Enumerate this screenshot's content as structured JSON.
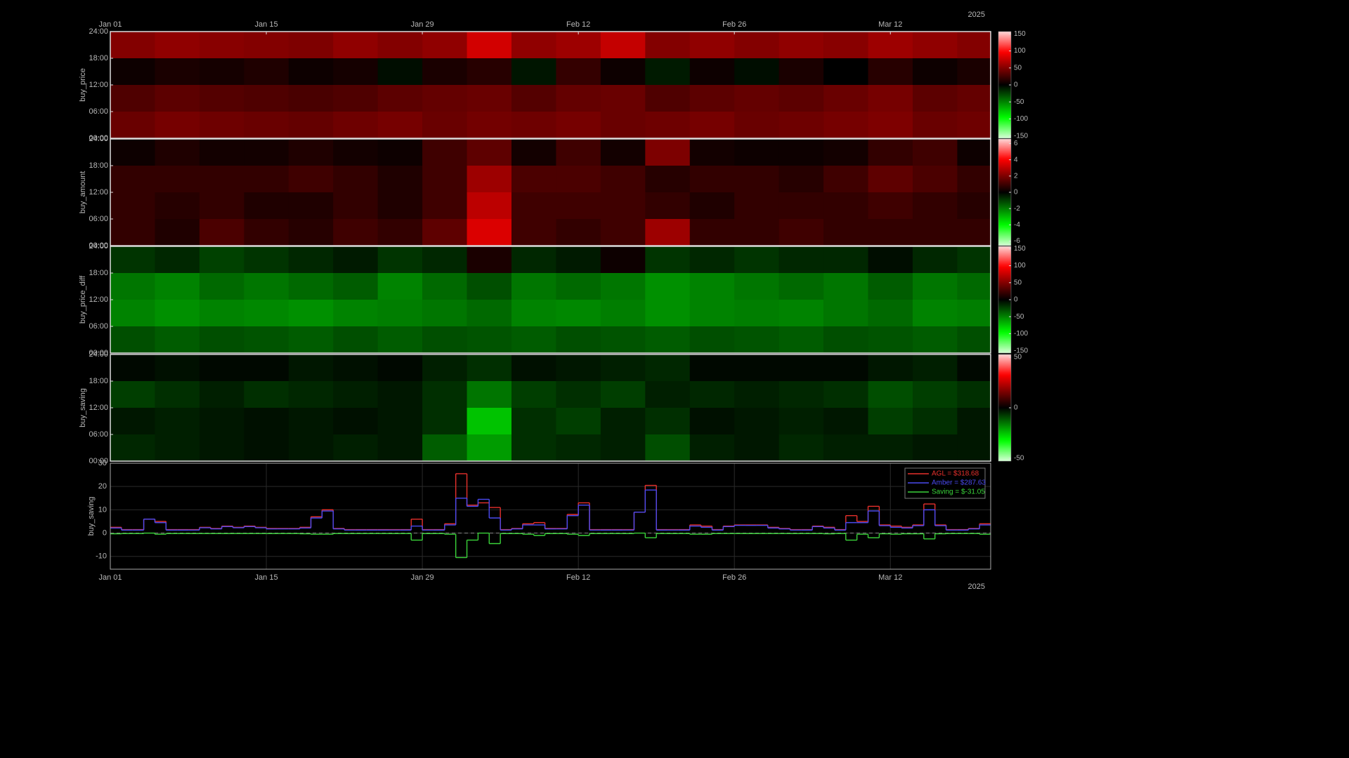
{
  "chart_data": [
    {
      "type": "heatmap",
      "ylabel": "buy_price",
      "xlim": [
        0,
        79
      ],
      "xticks": [
        {
          "value": 0,
          "label": "Jan 01"
        },
        {
          "value": 14,
          "label": "Jan 15"
        },
        {
          "value": 28,
          "label": "Jan 29"
        },
        {
          "value": 42,
          "label": "Feb 12"
        },
        {
          "value": 56,
          "label": "Feb 26"
        },
        {
          "value": 70,
          "label": "Mar 12"
        }
      ],
      "x_offset_label": "2025",
      "ylim": [
        0,
        24
      ],
      "yticks": [
        {
          "value": 0,
          "label": "00:00"
        },
        {
          "value": 6,
          "label": "06:00"
        },
        {
          "value": 12,
          "label": "12:00"
        },
        {
          "value": 18,
          "label": "18:00"
        },
        {
          "value": 24,
          "label": "24:00"
        }
      ],
      "xbins": [
        0,
        4,
        8,
        12,
        16,
        20,
        24,
        28,
        32,
        36,
        40,
        44,
        48,
        52,
        56,
        60,
        64,
        68,
        72,
        76,
        79
      ],
      "ybins": [
        0,
        6,
        12,
        18,
        24
      ],
      "clim": [
        -157,
        157
      ],
      "cticks": [
        150,
        100,
        50,
        0,
        -50,
        -100,
        -150
      ],
      "values": [
        [
          40,
          45,
          42,
          40,
          38,
          42,
          45,
          40,
          44,
          42,
          45,
          40,
          42,
          45,
          40,
          42,
          45,
          48,
          40,
          42
        ],
        [
          30,
          35,
          32,
          30,
          28,
          30,
          35,
          38,
          40,
          32,
          38,
          40,
          30,
          35,
          38,
          35,
          40,
          45,
          35,
          38
        ],
        [
          5,
          10,
          8,
          12,
          5,
          8,
          -5,
          10,
          15,
          -8,
          20,
          5,
          -10,
          5,
          -5,
          10,
          0,
          15,
          5,
          10
        ],
        [
          50,
          55,
          52,
          50,
          48,
          55,
          50,
          55,
          80,
          55,
          60,
          75,
          50,
          55,
          50,
          55,
          52,
          60,
          55,
          50
        ]
      ]
    },
    {
      "type": "heatmap",
      "ylabel": "buy_amount",
      "xlim": [
        0,
        79
      ],
      "ylim": [
        0,
        24
      ],
      "yticks": [
        {
          "value": 0,
          "label": "00:00"
        },
        {
          "value": 6,
          "label": "06:00"
        },
        {
          "value": 12,
          "label": "12:00"
        },
        {
          "value": 18,
          "label": "18:00"
        },
        {
          "value": 24,
          "label": "24:00"
        }
      ],
      "xbins": [
        0,
        4,
        8,
        12,
        16,
        20,
        24,
        28,
        32,
        36,
        40,
        44,
        48,
        52,
        56,
        60,
        64,
        68,
        72,
        76,
        79
      ],
      "ybins": [
        0,
        6,
        12,
        18,
        24
      ],
      "clim": [
        -6.56,
        6.56
      ],
      "cticks": [
        6,
        4,
        2,
        0,
        -2,
        -4,
        -6
      ],
      "values": [
        [
          0.8,
          0.5,
          1.2,
          0.8,
          0.6,
          1.0,
          0.8,
          1.5,
          3.5,
          1.0,
          0.8,
          1.0,
          2.5,
          0.8,
          0.8,
          1.0,
          0.8,
          0.8,
          0.8,
          0.8
        ],
        [
          0.8,
          0.6,
          0.8,
          0.5,
          0.5,
          0.8,
          0.5,
          1.0,
          3.0,
          1.0,
          1.0,
          1.0,
          0.8,
          0.5,
          0.8,
          0.8,
          0.8,
          1.0,
          0.8,
          0.6
        ],
        [
          0.8,
          0.8,
          0.8,
          0.8,
          1.0,
          0.8,
          0.5,
          1.0,
          2.5,
          1.2,
          1.2,
          1.0,
          0.6,
          0.8,
          0.8,
          0.6,
          1.0,
          1.5,
          1.2,
          0.8
        ],
        [
          0.2,
          0.5,
          0.3,
          0.3,
          0.5,
          0.3,
          0.2,
          1.0,
          1.5,
          0.3,
          1.0,
          0.3,
          2.0,
          0.3,
          0.2,
          0.2,
          0.3,
          0.8,
          1.0,
          0.2
        ]
      ]
    },
    {
      "type": "heatmap",
      "ylabel": "buy_price_diff",
      "xlim": [
        0,
        79
      ],
      "ylim": [
        0,
        24
      ],
      "yticks": [
        {
          "value": 0,
          "label": "00:00"
        },
        {
          "value": 6,
          "label": "06:00"
        },
        {
          "value": 12,
          "label": "12:00"
        },
        {
          "value": 18,
          "label": "18:00"
        },
        {
          "value": 24,
          "label": "24:00"
        }
      ],
      "xbins": [
        0,
        4,
        8,
        12,
        16,
        20,
        24,
        28,
        32,
        36,
        40,
        44,
        48,
        52,
        56,
        60,
        64,
        68,
        72,
        76,
        79
      ],
      "ybins": [
        0,
        6,
        12,
        18,
        24
      ],
      "clim": [
        -157,
        157
      ],
      "cticks": [
        150,
        100,
        50,
        0,
        -50,
        -100,
        -150
      ],
      "values": [
        [
          -30,
          -35,
          -30,
          -32,
          -35,
          -30,
          -35,
          -30,
          -32,
          -35,
          -30,
          -32,
          -35,
          -30,
          -32,
          -35,
          -30,
          -32,
          -35,
          -30
        ],
        [
          -50,
          -55,
          -50,
          -52,
          -55,
          -50,
          -48,
          -45,
          -40,
          -50,
          -52,
          -48,
          -55,
          -50,
          -48,
          -50,
          -45,
          -40,
          -50,
          -48
        ],
        [
          -45,
          -50,
          -40,
          -45,
          -40,
          -35,
          -50,
          -40,
          -30,
          -45,
          -40,
          -45,
          -55,
          -50,
          -45,
          -40,
          -45,
          -35,
          -45,
          -40
        ],
        [
          -20,
          -15,
          -25,
          -20,
          -15,
          -10,
          -20,
          -15,
          10,
          -15,
          -10,
          5,
          -20,
          -15,
          -20,
          -15,
          -15,
          -5,
          -15,
          -20
        ]
      ]
    },
    {
      "type": "heatmap",
      "ylabel": "buy_saving",
      "xlim": [
        0,
        79
      ],
      "ylim": [
        0,
        24
      ],
      "yticks": [
        {
          "value": 0,
          "label": "00:00"
        },
        {
          "value": 6,
          "label": "06:00"
        },
        {
          "value": 12,
          "label": "12:00"
        },
        {
          "value": 18,
          "label": "18:00"
        },
        {
          "value": 24,
          "label": "24:00"
        }
      ],
      "xbins": [
        0,
        4,
        8,
        12,
        16,
        20,
        24,
        28,
        32,
        36,
        40,
        44,
        48,
        52,
        56,
        60,
        64,
        68,
        72,
        76,
        79
      ],
      "ybins": [
        0,
        6,
        12,
        18,
        24
      ],
      "clim": [
        -52.8,
        52.8
      ],
      "cticks": [
        50,
        0,
        -50
      ],
      "values": [
        [
          -5,
          -4,
          -3,
          -2,
          -3,
          -4,
          -3,
          -12,
          -20,
          -6,
          -5,
          -4,
          -10,
          -4,
          -3,
          -5,
          -4,
          -4,
          -3,
          -3
        ],
        [
          -3,
          -4,
          -3,
          -2,
          -3,
          -2,
          -3,
          -6,
          -25,
          -6,
          -8,
          -4,
          -6,
          -2,
          -3,
          -4,
          -3,
          -8,
          -6,
          -3
        ],
        [
          -8,
          -6,
          -4,
          -6,
          -5,
          -4,
          -3,
          -6,
          -15,
          -8,
          -6,
          -8,
          -4,
          -5,
          -4,
          -5,
          -6,
          -10,
          -8,
          -6
        ],
        [
          -1,
          -2,
          -1,
          -1,
          -3,
          -2,
          -1,
          -4,
          -6,
          -2,
          -3,
          -4,
          -5,
          -1,
          -1,
          -1,
          -1,
          -3,
          -4,
          -1
        ]
      ]
    },
    {
      "type": "line",
      "ylabel": "buy_saving",
      "drawstyle": "steps-post",
      "grid": true,
      "legend": "upper right",
      "xlim": [
        0,
        79
      ],
      "xticks": [
        {
          "value": 0,
          "label": "Jan 01"
        },
        {
          "value": 14,
          "label": "Jan 15"
        },
        {
          "value": 28,
          "label": "Jan 29"
        },
        {
          "value": 42,
          "label": "Feb 12"
        },
        {
          "value": 56,
          "label": "Feb 26"
        },
        {
          "value": 70,
          "label": "Mar 12"
        }
      ],
      "x_offset_label": "2025",
      "ylim": [
        -15.5,
        30
      ],
      "yticks": [
        -10,
        0,
        10,
        20,
        30
      ],
      "zero_line": 0,
      "x": [
        0,
        1,
        2,
        3,
        4,
        5,
        6,
        7,
        8,
        9,
        10,
        11,
        12,
        13,
        14,
        15,
        16,
        17,
        18,
        19,
        20,
        21,
        22,
        23,
        24,
        25,
        26,
        27,
        28,
        29,
        30,
        31,
        32,
        33,
        34,
        35,
        36,
        37,
        38,
        39,
        40,
        41,
        42,
        43,
        44,
        45,
        46,
        47,
        48,
        49,
        50,
        51,
        52,
        53,
        54,
        55,
        56,
        57,
        58,
        59,
        60,
        61,
        62,
        63,
        64,
        65,
        66,
        67,
        68,
        69,
        70,
        71,
        72,
        73,
        74,
        75,
        76,
        77,
        78
      ],
      "series": [
        {
          "name": "AGL = $318.68",
          "color": "#e8302c",
          "values": [
            2.5,
            1.5,
            1.5,
            6,
            5,
            1.5,
            1.5,
            1.5,
            2.5,
            2,
            3,
            2.5,
            3,
            2.5,
            2,
            2,
            2,
            2.5,
            7,
            10,
            2,
            1.5,
            1.5,
            1.5,
            1.5,
            1.5,
            1.5,
            6,
            1.5,
            1.5,
            4,
            25.5,
            12,
            13,
            11,
            1.5,
            2,
            4,
            4.5,
            2,
            2,
            8,
            13,
            1.5,
            1.5,
            1.5,
            1.5,
            9,
            20.5,
            1.5,
            1.5,
            1.5,
            3.5,
            3,
            1.5,
            3,
            3.5,
            3.5,
            3.5,
            2.5,
            2,
            1.5,
            1.5,
            3,
            2.5,
            1.5,
            7.5,
            5,
            11.5,
            3.5,
            3,
            2.5,
            3.5,
            12.5,
            3.5,
            1.5,
            1.5,
            2,
            4
          ]
        },
        {
          "name": "Amber = $287.63",
          "color": "#4a4af0",
          "values": [
            2.2,
            1.3,
            1.3,
            6,
            4.5,
            1.3,
            1.3,
            1.3,
            2.3,
            1.8,
            2.8,
            2.3,
            2.8,
            2.3,
            1.8,
            1.8,
            1.8,
            2.2,
            6.5,
            9.5,
            1.8,
            1.3,
            1.3,
            1.3,
            1.3,
            1.3,
            1.3,
            3,
            1.3,
            1.3,
            3.5,
            15,
            11.5,
            14.5,
            6.5,
            1.3,
            1.8,
            3.5,
            3.5,
            1.8,
            1.8,
            7.5,
            12,
            1.3,
            1.3,
            1.3,
            1.3,
            9,
            18.5,
            1.3,
            1.3,
            1.3,
            3,
            2.5,
            1.3,
            2.8,
            3.3,
            3.3,
            3.3,
            2.2,
            1.8,
            1.3,
            1.3,
            2.8,
            2.2,
            1.3,
            4.5,
            4.5,
            9.5,
            3.2,
            2.5,
            2.2,
            3.2,
            10,
            3.2,
            1.3,
            1.3,
            1.8,
            3.5
          ]
        },
        {
          "name": "Saving = $-31.05",
          "color": "#3ad43a",
          "values": [
            -0.3,
            -0.2,
            -0.2,
            0,
            -0.5,
            -0.2,
            -0.2,
            -0.2,
            -0.2,
            -0.2,
            -0.2,
            -0.2,
            -0.2,
            -0.2,
            -0.2,
            -0.2,
            -0.2,
            -0.3,
            -0.5,
            -0.5,
            -0.2,
            -0.2,
            -0.2,
            -0.2,
            -0.2,
            -0.2,
            -0.2,
            -3,
            -0.2,
            -0.2,
            -0.5,
            -10.5,
            -3,
            0,
            -4.5,
            -0.2,
            -0.2,
            -0.5,
            -1,
            -0.2,
            -0.2,
            -0.5,
            -1,
            -0.2,
            -0.2,
            -0.2,
            -0.2,
            0,
            -2,
            -0.2,
            -0.2,
            -0.2,
            -0.5,
            -0.5,
            -0.2,
            -0.2,
            -0.2,
            -0.2,
            -0.2,
            -0.2,
            -0.2,
            -0.2,
            -0.2,
            -0.2,
            -0.3,
            -0.2,
            -3,
            -0.5,
            -2,
            -0.3,
            -0.5,
            -0.3,
            -0.3,
            -2.5,
            -0.3,
            -0.2,
            -0.2,
            -0.2,
            -0.5
          ]
        }
      ]
    }
  ]
}
